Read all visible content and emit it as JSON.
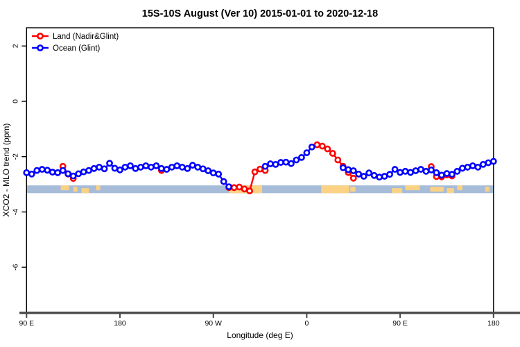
{
  "title": "15S-10S August (Ver 10)   2015-01-01 to 2020-12-18",
  "chart_data": {
    "type": "line",
    "title": "15S-10S August (Ver 10)   2015-01-01 to 2020-12-18",
    "xlabel": "Longitude (deg E)",
    "ylabel": "XCO2 - MLO trend (ppm)",
    "x_axis_note": "wrapped longitude axis spanning 450 deg: 90E,180,90W,0,90E,180",
    "x_ticks": [
      {
        "deg": 0,
        "label": "90 E"
      },
      {
        "deg": 90,
        "label": "180"
      },
      {
        "deg": 180,
        "label": "90 W"
      },
      {
        "deg": 270,
        "label": "0"
      },
      {
        "deg": 360,
        "label": "90 E"
      },
      {
        "deg": 450,
        "label": "180"
      }
    ],
    "y_ticks": [
      {
        "v": 2,
        "label": "2"
      },
      {
        "v": 0,
        "label": "0"
      },
      {
        "v": -2,
        "label": "-2"
      },
      {
        "v": -4,
        "label": "-4"
      },
      {
        "v": -6,
        "label": "-6"
      }
    ],
    "ylim": [
      -7.6,
      2.66
    ],
    "xlim_deg": [
      0,
      450
    ],
    "grid": false,
    "legend_position": "top-left",
    "legend": [
      {
        "label": "Land (Nadir&Glint)",
        "color": "#FF0000"
      },
      {
        "label": "Ocean (Glint)",
        "color": "#0000FF"
      }
    ],
    "band": {
      "description": "horizontal reference band",
      "y_top": -3.04,
      "y_bottom": -3.32,
      "color": "#A6BCD8",
      "highlight_color": "#FBD284",
      "highlights_deg": [
        [
          195,
          227
        ],
        [
          284,
          311
        ]
      ],
      "speckles_deg": [
        [
          33,
          41
        ],
        [
          45,
          49
        ],
        [
          53,
          60
        ],
        [
          67,
          71
        ],
        [
          312,
          317
        ],
        [
          352,
          362
        ],
        [
          365,
          379
        ],
        [
          389,
          402
        ],
        [
          405,
          412
        ],
        [
          415,
          420
        ],
        [
          442,
          446
        ]
      ]
    },
    "series": [
      {
        "name": "Land (Nadir&Glint)",
        "color": "#FF0000",
        "segments": [
          [
            [
              35,
              -2.35
            ],
            [
              40,
              -2.63
            ],
            [
              45,
              -2.79
            ]
          ],
          [
            [
              130,
              -2.5
            ]
          ],
          [
            [
              195,
              -3.12
            ],
            [
              200,
              -3.12
            ],
            [
              205,
              -3.1
            ],
            [
              210,
              -3.17
            ],
            [
              215,
              -3.24
            ],
            [
              220,
              -2.55
            ],
            [
              225,
              -2.45
            ],
            [
              230,
              -2.5
            ]
          ],
          [
            [
              280,
              -1.57
            ],
            [
              285,
              -1.62
            ],
            [
              290,
              -1.72
            ],
            [
              295,
              -1.88
            ],
            [
              300,
              -2.12
            ],
            [
              305,
              -2.35
            ],
            [
              310,
              -2.57
            ],
            [
              315,
              -2.78
            ]
          ],
          [
            [
              390,
              -2.36
            ],
            [
              395,
              -2.72
            ],
            [
              400,
              -2.73
            ],
            [
              405,
              -2.66
            ],
            [
              410,
              -2.7
            ]
          ]
        ]
      },
      {
        "name": "Ocean (Glint)",
        "color": "#0000FF",
        "segments": [
          [
            [
              0,
              -2.58
            ],
            [
              5,
              -2.63
            ],
            [
              10,
              -2.5
            ],
            [
              15,
              -2.46
            ],
            [
              20,
              -2.49
            ],
            [
              25,
              -2.56
            ],
            [
              30,
              -2.58
            ],
            [
              35,
              -2.5
            ],
            [
              40,
              -2.62
            ],
            [
              45,
              -2.7
            ],
            [
              50,
              -2.62
            ],
            [
              55,
              -2.55
            ],
            [
              60,
              -2.5
            ],
            [
              65,
              -2.43
            ],
            [
              70,
              -2.38
            ],
            [
              75,
              -2.44
            ],
            [
              80,
              -2.24
            ],
            [
              85,
              -2.42
            ],
            [
              90,
              -2.48
            ],
            [
              95,
              -2.38
            ],
            [
              100,
              -2.33
            ],
            [
              105,
              -2.43
            ],
            [
              110,
              -2.38
            ],
            [
              115,
              -2.33
            ],
            [
              120,
              -2.38
            ],
            [
              125,
              -2.33
            ],
            [
              130,
              -2.43
            ],
            [
              135,
              -2.46
            ],
            [
              140,
              -2.38
            ],
            [
              145,
              -2.33
            ],
            [
              150,
              -2.38
            ],
            [
              155,
              -2.43
            ],
            [
              160,
              -2.31
            ],
            [
              165,
              -2.38
            ],
            [
              170,
              -2.44
            ],
            [
              175,
              -2.51
            ],
            [
              180,
              -2.59
            ],
            [
              185,
              -2.63
            ],
            [
              190,
              -2.9
            ],
            [
              195,
              -3.09
            ]
          ],
          [
            [
              230,
              -2.35
            ],
            [
              235,
              -2.26
            ],
            [
              240,
              -2.28
            ],
            [
              245,
              -2.21
            ],
            [
              250,
              -2.2
            ],
            [
              255,
              -2.25
            ],
            [
              260,
              -2.12
            ],
            [
              265,
              -2.03
            ],
            [
              270,
              -1.86
            ],
            [
              275,
              -1.65
            ]
          ],
          [
            [
              305,
              -2.4
            ],
            [
              310,
              -2.47
            ],
            [
              315,
              -2.51
            ],
            [
              320,
              -2.63
            ],
            [
              325,
              -2.71
            ],
            [
              330,
              -2.59
            ],
            [
              335,
              -2.68
            ],
            [
              340,
              -2.74
            ],
            [
              345,
              -2.71
            ],
            [
              350,
              -2.64
            ],
            [
              355,
              -2.46
            ],
            [
              360,
              -2.57
            ],
            [
              365,
              -2.53
            ],
            [
              370,
              -2.57
            ],
            [
              375,
              -2.51
            ],
            [
              380,
              -2.46
            ],
            [
              385,
              -2.53
            ],
            [
              390,
              -2.48
            ],
            [
              395,
              -2.58
            ],
            [
              400,
              -2.67
            ],
            [
              405,
              -2.61
            ],
            [
              410,
              -2.64
            ],
            [
              415,
              -2.53
            ],
            [
              420,
              -2.42
            ],
            [
              425,
              -2.38
            ],
            [
              430,
              -2.33
            ],
            [
              435,
              -2.38
            ],
            [
              440,
              -2.28
            ],
            [
              445,
              -2.22
            ],
            [
              450,
              -2.17
            ]
          ]
        ]
      }
    ],
    "style": {
      "axis_color": "#4a4a4a",
      "box_color": "#000000",
      "marker_radius": 3.6,
      "marker_stroke": 2.6,
      "line_width": 2.4
    }
  }
}
